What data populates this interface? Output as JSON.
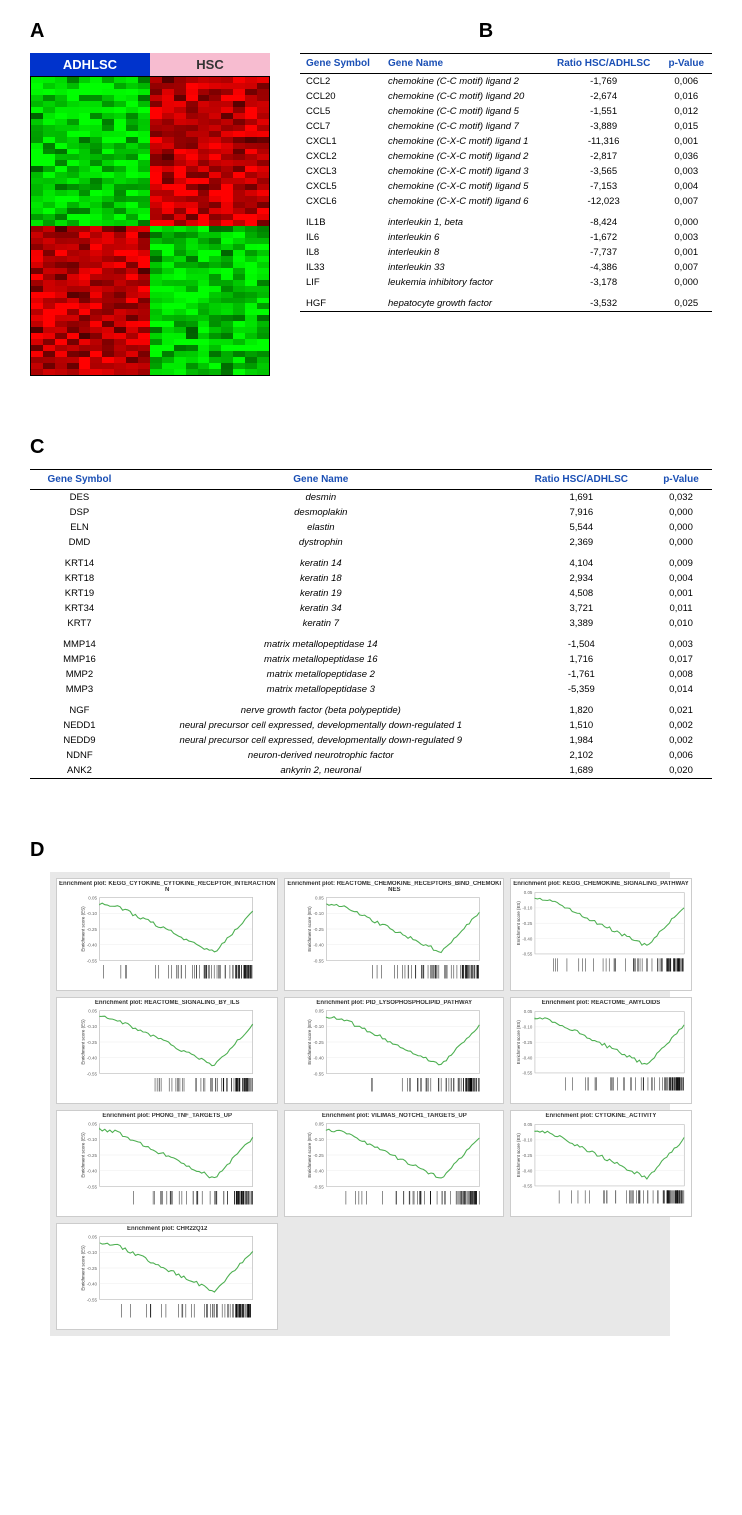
{
  "panelA": {
    "label": "A",
    "header_left": "ADHLSC",
    "header_right": "HSC",
    "header_left_bg": "#0033cc",
    "header_right_bg": "#f7bcd0",
    "heatmap": {
      "rows": 50,
      "cols": 20,
      "colors_low": "#00ff00",
      "colors_mid": "#000000",
      "colors_high": "#ff0000"
    }
  },
  "panelB": {
    "label": "B",
    "headers": [
      "Gene Symbol",
      "Gene Name",
      "Ratio HSC/ADHLSC",
      "p-Value"
    ],
    "groups": [
      [
        {
          "symbol": "CCL2",
          "name": "chemokine (C-C motif) ligand 2",
          "ratio": "-1,769",
          "p": "0,006"
        },
        {
          "symbol": "CCL20",
          "name": "chemokine (C-C motif) ligand 20",
          "ratio": "-2,674",
          "p": "0,016"
        },
        {
          "symbol": "CCL5",
          "name": "chemokine (C-C motif) ligand 5",
          "ratio": "-1,551",
          "p": "0,012"
        },
        {
          "symbol": "CCL7",
          "name": "chemokine (C-C motif) ligand 7",
          "ratio": "-3,889",
          "p": "0,015"
        },
        {
          "symbol": "CXCL1",
          "name": "chemokine (C-X-C motif) ligand 1",
          "ratio": "-11,316",
          "p": "0,001"
        },
        {
          "symbol": "CXCL2",
          "name": "chemokine (C-X-C motif) ligand 2",
          "ratio": "-2,817",
          "p": "0,036"
        },
        {
          "symbol": "CXCL3",
          "name": "chemokine (C-X-C motif) ligand 3",
          "ratio": "-3,565",
          "p": "0,003"
        },
        {
          "symbol": "CXCL5",
          "name": "chemokine (C-X-C motif) ligand 5",
          "ratio": "-7,153",
          "p": "0,004"
        },
        {
          "symbol": "CXCL6",
          "name": "chemokine (C-X-C motif) ligand 6",
          "ratio": "-12,023",
          "p": "0,007"
        }
      ],
      [
        {
          "symbol": "IL1B",
          "name": "interleukin 1, beta",
          "ratio": "-8,424",
          "p": "0,000"
        },
        {
          "symbol": "IL6",
          "name": "interleukin 6",
          "ratio": "-1,672",
          "p": "0,003"
        },
        {
          "symbol": "IL8",
          "name": "interleukin 8",
          "ratio": "-7,737",
          "p": "0,001"
        },
        {
          "symbol": "IL33",
          "name": "interleukin 33",
          "ratio": "-4,386",
          "p": "0,007"
        },
        {
          "symbol": "LIF",
          "name": "leukemia inhibitory factor",
          "ratio": "-3,178",
          "p": "0,000"
        }
      ],
      [
        {
          "symbol": "HGF",
          "name": "hepatocyte growth factor",
          "ratio": "-3,532",
          "p": "0,025"
        }
      ]
    ]
  },
  "panelC": {
    "label": "C",
    "headers": [
      "Gene Symbol",
      "Gene Name",
      "Ratio HSC/ADHLSC",
      "p-Value"
    ],
    "groups": [
      [
        {
          "symbol": "DES",
          "name": "desmin",
          "ratio": "1,691",
          "p": "0,032"
        },
        {
          "symbol": "DSP",
          "name": "desmoplakin",
          "ratio": "7,916",
          "p": "0,000"
        },
        {
          "symbol": "ELN",
          "name": "elastin",
          "ratio": "5,544",
          "p": "0,000"
        },
        {
          "symbol": "DMD",
          "name": "dystrophin",
          "ratio": "2,369",
          "p": "0,000"
        }
      ],
      [
        {
          "symbol": "KRT14",
          "name": "keratin 14",
          "ratio": "4,104",
          "p": "0,009"
        },
        {
          "symbol": "KRT18",
          "name": "keratin 18",
          "ratio": "2,934",
          "p": "0,004"
        },
        {
          "symbol": "KRT19",
          "name": "keratin 19",
          "ratio": "4,508",
          "p": "0,001"
        },
        {
          "symbol": "KRT34",
          "name": "keratin 34",
          "ratio": "3,721",
          "p": "0,011"
        },
        {
          "symbol": "KRT7",
          "name": "keratin 7",
          "ratio": "3,389",
          "p": "0,010"
        }
      ],
      [
        {
          "symbol": "MMP14",
          "name": "matrix metallopeptidase 14",
          "ratio": "-1,504",
          "p": "0,003"
        },
        {
          "symbol": "MMP16",
          "name": "matrix metallopeptidase 16",
          "ratio": "1,716",
          "p": "0,017"
        },
        {
          "symbol": "MMP2",
          "name": "matrix metallopeptidase 2",
          "ratio": "-1,761",
          "p": "0,008"
        },
        {
          "symbol": "MMP3",
          "name": "matrix metallopeptidase 3",
          "ratio": "-5,359",
          "p": "0,014"
        }
      ],
      [
        {
          "symbol": "NGF",
          "name": "nerve growth factor (beta polypeptide)",
          "ratio": "1,820",
          "p": "0,021"
        },
        {
          "symbol": "NEDD1",
          "name": "neural precursor cell expressed, developmentally down-regulated 1",
          "ratio": "1,510",
          "p": "0,002"
        },
        {
          "symbol": "NEDD9",
          "name": "neural precursor cell expressed, developmentally down-regulated 9",
          "ratio": "1,984",
          "p": "0,002"
        },
        {
          "symbol": "NDNF",
          "name": "neuron-derived neurotrophic factor",
          "ratio": "2,102",
          "p": "0,006"
        },
        {
          "symbol": "ANK2",
          "name": "ankyrin 2, neuronal",
          "ratio": "1,689",
          "p": "0,020"
        }
      ]
    ]
  },
  "panelD": {
    "label": "D",
    "plots": [
      {
        "title": "Enrichment plot: KEGG_CYTOKINE_CYTOKINE_RECEPTOR_INTERACTION",
        "subtitle": "N"
      },
      {
        "title": "Enrichment plot: REACTOME_CHEMOKINE_RECEPTORS_BIND_CHEMOKI",
        "subtitle": "NES"
      },
      {
        "title": "Enrichment plot: KEGG_CHEMOKINE_SIGNALING_PATHWAY",
        "subtitle": ""
      },
      {
        "title": "Enrichment plot: REACTOME_SIGNALING_BY_ILS",
        "subtitle": ""
      },
      {
        "title": "Enrichment plot: PID_LYSOPHOSPHOLIPID_PATHWAY",
        "subtitle": ""
      },
      {
        "title": "Enrichment plot: REACTOME_AMYLOIDS",
        "subtitle": ""
      },
      {
        "title": "Enrichment plot: PHONG_TNF_TARGETS_UP",
        "subtitle": ""
      },
      {
        "title": "Enrichment plot: VILIMAS_NOTCH1_TARGETS_UP",
        "subtitle": ""
      },
      {
        "title": "Enrichment plot: CYTOKINE_ACTIVITY",
        "subtitle": ""
      },
      {
        "title": "Enrichment plot: CHR22Q12",
        "subtitle": ""
      }
    ],
    "gsea_style": {
      "line_color": "#4caf50",
      "bg": "#ffffff",
      "ylim": [
        -0.65,
        0.05
      ],
      "ylabel": "Enrichment score (ES)",
      "ylabel_fontsize": 5
    }
  }
}
